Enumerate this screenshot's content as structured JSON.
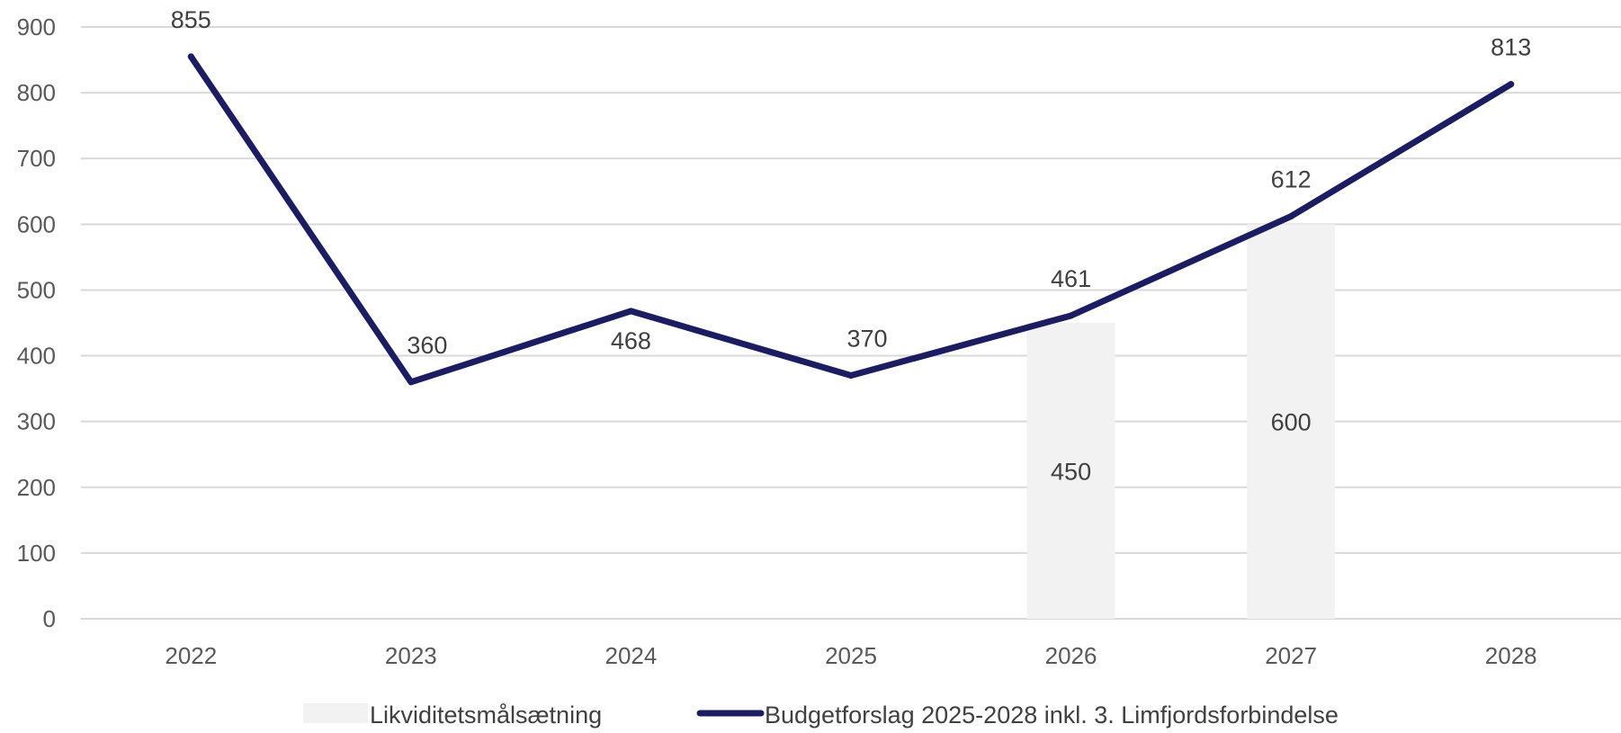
{
  "chart_data": {
    "type": "bar",
    "categories": [
      "2022",
      "2023",
      "2024",
      "2025",
      "2026",
      "2027",
      "2028"
    ],
    "series": [
      {
        "name": "Likviditetsmålsætning",
        "kind": "bar",
        "color": "#f2f2f2",
        "values": [
          null,
          null,
          null,
          null,
          450,
          600,
          null
        ]
      },
      {
        "name": "Budgetforslag 2025-2028 inkl. 3. Limfjordsforbindelse",
        "kind": "line",
        "color": "#1b1c63",
        "values": [
          855,
          360,
          468,
          370,
          461,
          612,
          813
        ]
      }
    ],
    "ylim": [
      0,
      900
    ],
    "yticks": [
      0,
      100,
      200,
      300,
      400,
      500,
      600,
      700,
      800,
      900
    ],
    "grid": true,
    "legend": "bottom",
    "xlabel": "",
    "ylabel": ""
  }
}
